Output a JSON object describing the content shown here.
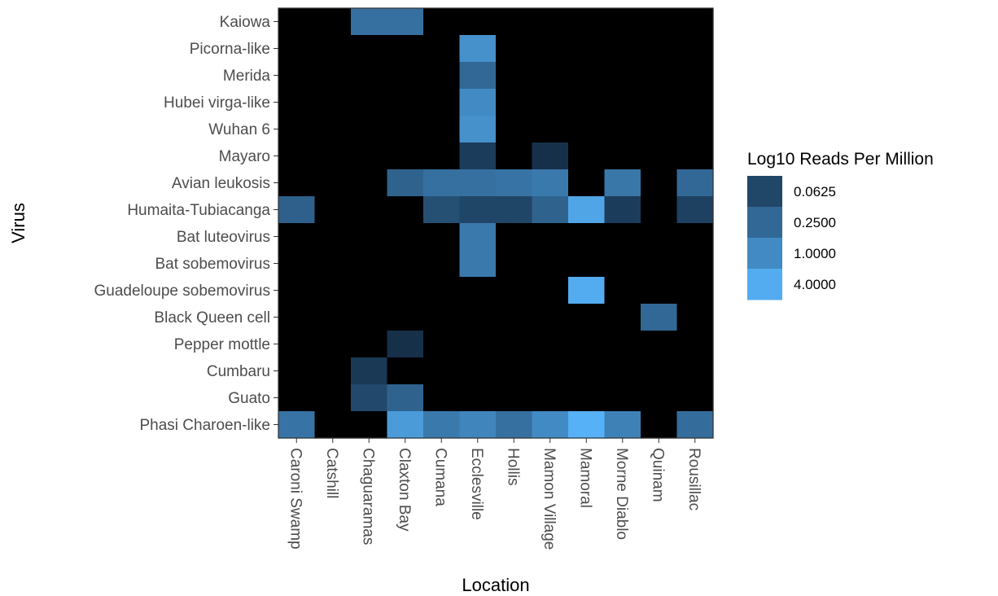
{
  "chart_data": {
    "type": "heatmap",
    "xlabel": "Location",
    "ylabel": "Virus",
    "x_categories": [
      "Caroni Swamp",
      "Catshill",
      "Chaguaramas",
      "Claxton Bay",
      "Cumana",
      "Ecclesville",
      "Hollis",
      "Mamon Village",
      "Mamoral",
      "Morne Diablo",
      "Quinam",
      "Rousillac"
    ],
    "y_categories": [
      "Kaiowa",
      "Picorna-like",
      "Merida",
      "Hubei virga-like",
      "Wuhan 6",
      "Mayaro",
      "Avian leukosis",
      "Humaita-Tubiacanga",
      "Bat luteovirus",
      "Bat sobemovirus",
      "Guadeloupe sobemovirus",
      "Black Queen cell",
      "Pepper mottle",
      "Cumbaru",
      "Guato",
      "Phasi Charoen-like"
    ],
    "values": [
      [
        null,
        null,
        0.35,
        0.35,
        null,
        null,
        null,
        null,
        null,
        null,
        null,
        null
      ],
      [
        null,
        null,
        null,
        null,
        null,
        1.3,
        null,
        null,
        null,
        null,
        null,
        null
      ],
      [
        null,
        null,
        null,
        null,
        null,
        0.25,
        null,
        null,
        null,
        null,
        null,
        null
      ],
      [
        null,
        null,
        null,
        null,
        null,
        1.0,
        null,
        null,
        null,
        null,
        null,
        null
      ],
      [
        null,
        null,
        null,
        null,
        null,
        1.3,
        null,
        null,
        null,
        null,
        null,
        null
      ],
      [
        null,
        null,
        null,
        null,
        null,
        0.04,
        null,
        0.025,
        null,
        null,
        null,
        null
      ],
      [
        null,
        null,
        null,
        0.2,
        0.35,
        0.35,
        0.4,
        0.5,
        null,
        0.45,
        null,
        0.25
      ],
      [
        0.18,
        null,
        null,
        null,
        0.09,
        0.06,
        0.06,
        0.2,
        3.0,
        0.04,
        null,
        0.05
      ],
      [
        null,
        null,
        null,
        null,
        null,
        0.5,
        null,
        null,
        null,
        null,
        null,
        null
      ],
      [
        null,
        null,
        null,
        null,
        null,
        0.5,
        null,
        null,
        null,
        null,
        null,
        null
      ],
      [
        null,
        null,
        null,
        null,
        null,
        null,
        null,
        null,
        4.0,
        null,
        null,
        null
      ],
      [
        null,
        null,
        null,
        null,
        null,
        null,
        null,
        null,
        null,
        null,
        0.25,
        null
      ],
      [
        null,
        null,
        null,
        0.025,
        null,
        null,
        null,
        null,
        null,
        null,
        null,
        null
      ],
      [
        null,
        null,
        0.035,
        null,
        null,
        null,
        null,
        null,
        null,
        null,
        null,
        null
      ],
      [
        null,
        null,
        0.07,
        0.2,
        null,
        null,
        null,
        null,
        null,
        null,
        null,
        null
      ],
      [
        0.4,
        null,
        null,
        2.0,
        0.5,
        0.8,
        0.35,
        1.0,
        5.0,
        0.7,
        null,
        0.3
      ]
    ],
    "legend": {
      "title": "Log10 Reads Per Million",
      "labels": [
        "0.0625",
        "0.2500",
        "1.0000",
        "4.0000"
      ],
      "values": [
        0.0625,
        0.25,
        1.0,
        4.0
      ],
      "placement": "right"
    },
    "colors": {
      "low": "#132b43",
      "high": "#56b1f7",
      "na": "#000000",
      "panel_border": "#333333"
    },
    "scale": "log"
  }
}
